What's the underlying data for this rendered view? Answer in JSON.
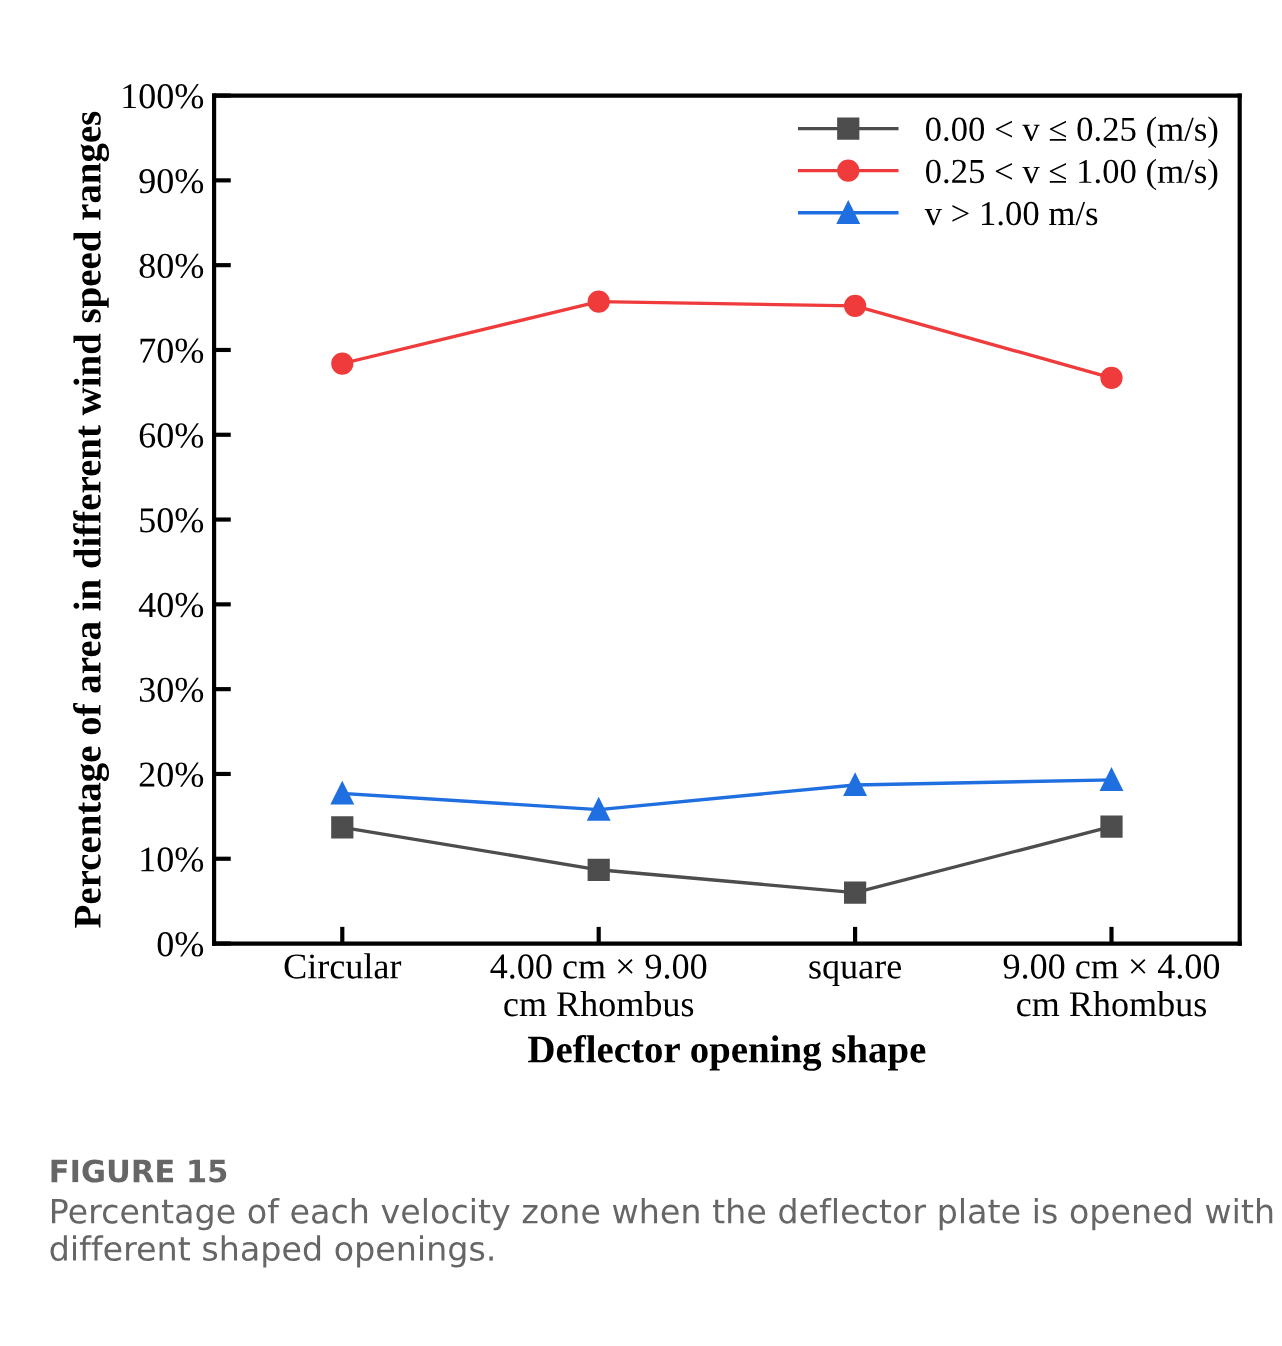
{
  "chart_data": {
    "type": "line",
    "xlabel": "Deflector opening shape",
    "ylabel": "Percentage of area in different wind speed ranges",
    "categories": [
      "Circular",
      "4.00 cm × 9.00\ncm Rhombus",
      "square",
      "9.00 cm × 4.00\ncm Rhombus"
    ],
    "series": [
      {
        "name": "0.00 < v ≤ 0.25 (m/s)",
        "color": "#4d4d4d",
        "marker": "square",
        "values": [
          13.7,
          8.7,
          6.0,
          13.8
        ]
      },
      {
        "name": "0.25 < v ≤ 1.00 (m/s)",
        "color": "#ef3b3b",
        "marker": "circle",
        "values": [
          68.4,
          75.7,
          75.2,
          66.7
        ]
      },
      {
        "name": "v > 1.00 m/s",
        "color": "#1f6fe0",
        "marker": "triangle",
        "values": [
          17.7,
          15.8,
          18.7,
          19.3
        ]
      }
    ],
    "ylim": [
      0,
      100
    ],
    "yticks": [
      {
        "value": 0,
        "label": "0%"
      },
      {
        "value": 10,
        "label": "10%"
      },
      {
        "value": 20,
        "label": "20%"
      },
      {
        "value": 30,
        "label": "30%"
      },
      {
        "value": 40,
        "label": "40%"
      },
      {
        "value": 50,
        "label": "50%"
      },
      {
        "value": 60,
        "label": "60%"
      },
      {
        "value": 70,
        "label": "70%"
      },
      {
        "value": 80,
        "label": "80%"
      },
      {
        "value": 90,
        "label": "90%"
      },
      {
        "value": 100,
        "label": "100%"
      }
    ],
    "grid": false,
    "legend": "top right",
    "line_style": "solid",
    "annotations": [
      "FIGURE 15",
      "Percentage of each velocity zone when the deflector plate is opened with different shaped openings."
    ]
  }
}
